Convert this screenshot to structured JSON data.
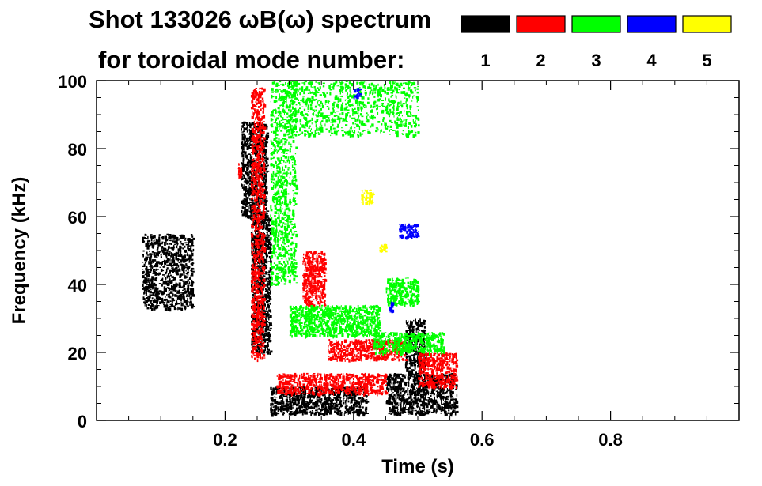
{
  "chart_data": {
    "type": "scatter",
    "title": "Shot 133026 ωB(ω) spectrum",
    "subtitle": "for toroidal mode number:",
    "xlabel": "Time (s)",
    "ylabel": "Frequency (kHz)",
    "xlim": [
      0.0,
      1.0
    ],
    "ylim": [
      0,
      100
    ],
    "x_ticks": [
      0.2,
      0.4,
      0.6,
      0.8
    ],
    "x_tick_labels": [
      "0.2",
      "0.4",
      "0.6",
      "0.8"
    ],
    "y_ticks": [
      0,
      20,
      40,
      60,
      80,
      100
    ],
    "y_tick_labels": [
      "0",
      "20",
      "40",
      "60",
      "80",
      "100"
    ],
    "grid": false,
    "legend": {
      "placement": "top-right",
      "entries": [
        {
          "label": "1",
          "color": "#000000"
        },
        {
          "label": "2",
          "color": "#ff0000"
        },
        {
          "label": "3",
          "color": "#00ff00"
        },
        {
          "label": "4",
          "color": "#0000ff"
        },
        {
          "label": "5",
          "color": "#ffff00"
        }
      ]
    },
    "series": [
      {
        "mode": "1",
        "color": "#000000",
        "regions": [
          {
            "t": [
              0.07,
              0.15
            ],
            "f": [
              33,
              55
            ]
          },
          {
            "t": [
              0.225,
              0.265
            ],
            "f": [
              60,
              88
            ]
          },
          {
            "t": [
              0.24,
              0.27
            ],
            "f": [
              20,
              60
            ]
          },
          {
            "t": [
              0.27,
              0.42
            ],
            "f": [
              2,
              10
            ]
          },
          {
            "t": [
              0.45,
              0.56
            ],
            "f": [
              2,
              14
            ]
          },
          {
            "t": [
              0.48,
              0.51
            ],
            "f": [
              14,
              30
            ]
          }
        ]
      },
      {
        "mode": "2",
        "color": "#ff0000",
        "regions": [
          {
            "t": [
              0.22,
              0.225
            ],
            "f": [
              72,
              76
            ]
          },
          {
            "t": [
              0.24,
              0.26
            ],
            "f": [
              18,
              98
            ]
          },
          {
            "t": [
              0.28,
              0.45
            ],
            "f": [
              8,
              14
            ]
          },
          {
            "t": [
              0.32,
              0.355
            ],
            "f": [
              34,
              50
            ]
          },
          {
            "t": [
              0.36,
              0.48
            ],
            "f": [
              18,
              24
            ]
          },
          {
            "t": [
              0.5,
              0.56
            ],
            "f": [
              10,
              20
            ]
          }
        ]
      },
      {
        "mode": "3",
        "color": "#00ff00",
        "regions": [
          {
            "t": [
              0.27,
              0.31
            ],
            "f": [
              40,
              100
            ]
          },
          {
            "t": [
              0.3,
              0.5
            ],
            "f": [
              84,
              100
            ]
          },
          {
            "t": [
              0.3,
              0.44
            ],
            "f": [
              25,
              34
            ]
          },
          {
            "t": [
              0.45,
              0.5
            ],
            "f": [
              34,
              42
            ]
          },
          {
            "t": [
              0.43,
              0.54
            ],
            "f": [
              20,
              26
            ]
          }
        ]
      },
      {
        "mode": "4",
        "color": "#0000ff",
        "regions": [
          {
            "t": [
              0.47,
              0.5
            ],
            "f": [
              54,
              58
            ]
          },
          {
            "t": [
              0.4,
              0.41
            ],
            "f": [
              95,
              98
            ]
          },
          {
            "t": [
              0.455,
              0.46
            ],
            "f": [
              32,
              35
            ]
          }
        ]
      },
      {
        "mode": "5",
        "color": "#ffff00",
        "regions": [
          {
            "t": [
              0.41,
              0.43
            ],
            "f": [
              64,
              68
            ]
          },
          {
            "t": [
              0.44,
              0.45
            ],
            "f": [
              50,
              52
            ]
          }
        ]
      }
    ]
  }
}
